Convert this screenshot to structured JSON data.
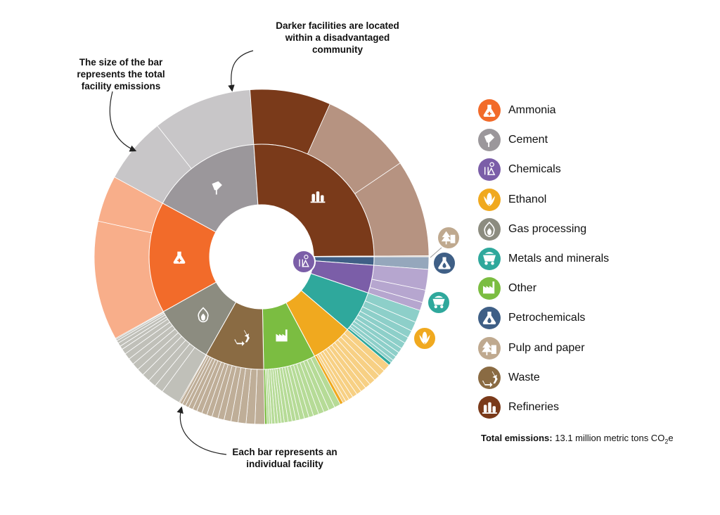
{
  "annotations": {
    "top": [
      "Darker facilities are located",
      "within a disadvantaged",
      "community"
    ],
    "left": [
      "The size of the bar",
      "represents the total",
      "facility emissions"
    ],
    "bottom": [
      "Each bar represents an",
      "individual facility"
    ]
  },
  "total": {
    "label": "Total emissions:",
    "value": "13.1 million metric tons CO",
    "sub": "2",
    "suffix": "e"
  },
  "chart_data": {
    "type": "sunburst",
    "total_emissions_million_t": 13.1,
    "colors": {
      "Ammonia": "#f26b2a",
      "Cement": "#9b979b",
      "Chemicals": "#7b5ea8",
      "Ethanol": "#f0a91f",
      "Gas processing": "#8c8c80",
      "Metals and minerals": "#2fa89c",
      "Other": "#7bbd41",
      "Petrochemicals": "#3f5f86",
      "Pulp and paper": "#bfa98f",
      "Waste": "#8a6b43",
      "Refineries": "#7a3a1a"
    },
    "series": [
      {
        "name": "Petrochemicals",
        "share": 0.012,
        "facilities": [
          1
        ]
      },
      {
        "name": "Chemicals",
        "share": 0.04,
        "facilities": [
          0.5,
          0.3,
          0.2
        ]
      },
      {
        "name": "Metals and minerals",
        "share": 0.06,
        "facilities": [
          0.2,
          0.15,
          0.12,
          0.1,
          0.1,
          0.08,
          0.08,
          0.07,
          0.05,
          0.05
        ]
      },
      {
        "name": "Ethanol",
        "share": 0.06,
        "facilities": [
          0.12,
          0.11,
          0.1,
          0.1,
          0.09,
          0.09,
          0.08,
          0.08,
          0.07,
          0.06,
          0.05,
          0.05
        ]
      },
      {
        "name": "Other",
        "share": 0.075,
        "facilities": [
          0.08,
          0.08,
          0.07,
          0.07,
          0.07,
          0.06,
          0.06,
          0.06,
          0.05,
          0.05,
          0.05,
          0.05,
          0.04,
          0.04,
          0.04,
          0.04,
          0.03,
          0.03,
          0.03
        ]
      },
      {
        "name": "Waste",
        "share": 0.085,
        "facilities": [
          0.11,
          0.1,
          0.09,
          0.08,
          0.08,
          0.07,
          0.07,
          0.06,
          0.06,
          0.06,
          0.05,
          0.05,
          0.04,
          0.04,
          0.03,
          0.01
        ]
      },
      {
        "name": "Gas processing",
        "share": 0.087,
        "facilities": [
          0.22,
          0.1,
          0.09,
          0.09,
          0.08,
          0.08,
          0.07,
          0.07,
          0.06,
          0.04,
          0.04,
          0.03,
          0.02,
          0.01
        ]
      },
      {
        "name": "Ammonia",
        "share": 0.16,
        "facilities": [
          0.72,
          0.28
        ]
      },
      {
        "name": "Cement",
        "share": 0.16,
        "facilities": [
          0.4,
          0.6
        ]
      },
      {
        "name": "Refineries",
        "share": 0.26,
        "facilities": [
          0.3,
          0.34,
          0.36
        ],
        "disadvantaged": [
          true,
          false,
          false
        ]
      },
      {
        "name": "Pulp and paper",
        "share": 0.001,
        "facilities": [
          1
        ]
      }
    ],
    "legend": [
      "Ammonia",
      "Cement",
      "Chemicals",
      "Ethanol",
      "Gas processing",
      "Metals and minerals",
      "Other",
      "Petrochemicals",
      "Pulp and paper",
      "Waste",
      "Refineries"
    ],
    "icons": {
      "Ammonia": "flask-plus-icon",
      "Cement": "cement-truck-icon",
      "Chemicals": "chemicals-icon",
      "Ethanol": "corn-icon",
      "Gas processing": "flame-icon",
      "Metals and minerals": "mine-cart-icon",
      "Other": "factory-icon",
      "Petrochemicals": "flask-drop-icon",
      "Pulp and paper": "tree-icon",
      "Waste": "recycle-icon",
      "Refineries": "refinery-icon"
    }
  }
}
